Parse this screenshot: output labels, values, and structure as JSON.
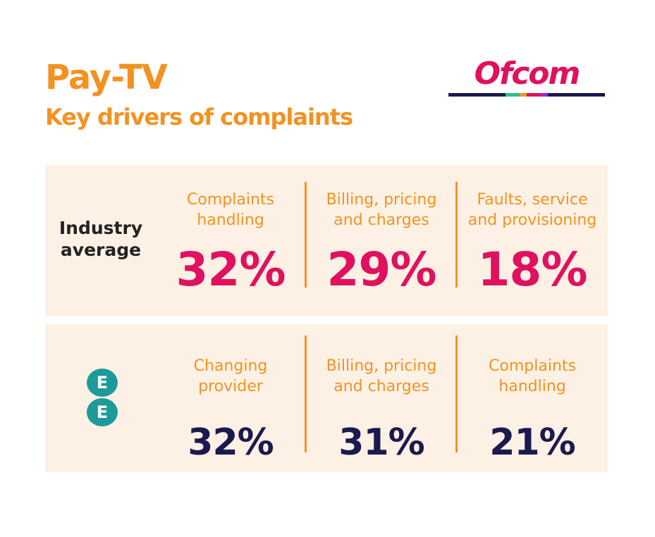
{
  "header": {
    "title": "Pay-TV",
    "subtitle": "Key drivers of complaints",
    "logo": "Ofcom"
  },
  "rows": [
    {
      "label": "Industry average",
      "items": [
        {
          "label": "Complaints handling",
          "value": "32%"
        },
        {
          "label": "Billing, pricing and charges",
          "value": "29%"
        },
        {
          "label": "Faults, service and provisioning",
          "value": "18%"
        }
      ]
    },
    {
      "logo": [
        "E",
        "E"
      ],
      "items": [
        {
          "label": "Changing provider",
          "value": "32%"
        },
        {
          "label": "Billing, pricing and charges",
          "value": "31%"
        },
        {
          "label": "Complaints handling",
          "value": "21%"
        }
      ]
    }
  ]
}
